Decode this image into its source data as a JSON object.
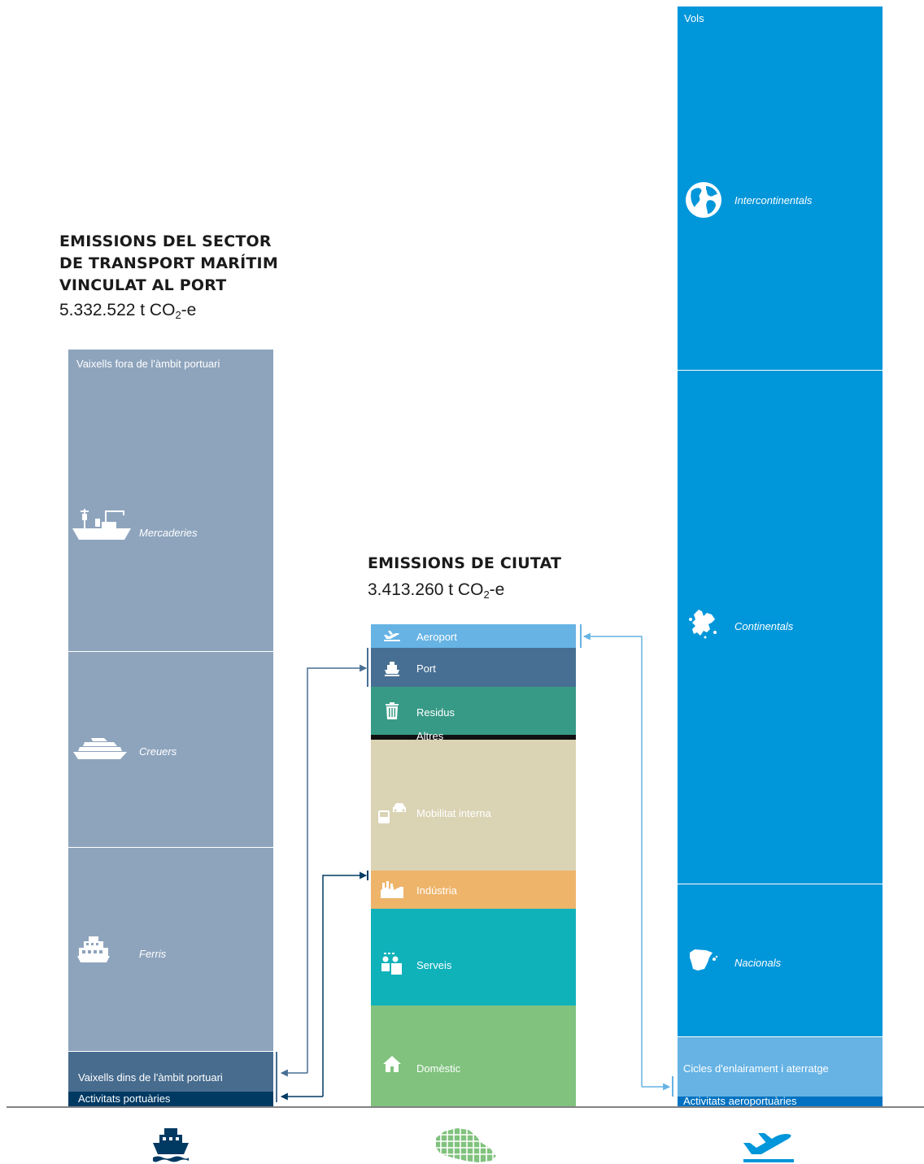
{
  "port_block": {
    "title_lines": [
      "EMISSIONS DEL SECTOR",
      "DE TRANSPORT MARÍTIM",
      "VINCULAT AL PORT"
    ],
    "total_value": "5.332.522 t CO",
    "total_sub": "2",
    "total_suffix": "-e",
    "outside_label": "Vaixells fora de l'àmbit portuari",
    "segments": {
      "mercaderies": "Mercaderies",
      "creuers": "Creuers",
      "ferris": "Ferris",
      "dins": "Vaixells dins de l'àmbit portuari",
      "activitats": "Activitats portuàries"
    }
  },
  "city_block": {
    "title": "EMISSIONS DE CIUTAT",
    "total_value": "3.413.260 t CO",
    "total_sub": "2",
    "total_suffix": "-e",
    "segments": {
      "aeroport": "Aeroport",
      "port": "Port",
      "residus": "Residus",
      "altres": "Altres",
      "mobilitat": "Mobilitat interna",
      "industria": "Indústria",
      "serveis": "Serveis",
      "domestic": "Domèstic"
    }
  },
  "airport_block": {
    "vols_label": "Vols",
    "segments": {
      "intercontinentals": "Intercontinentals",
      "continentals": "Continentals",
      "nacionals": "Nacionals",
      "cicles": "Cicles d'enlairament i aterratge",
      "activitats": "Activitats aeroportuàries"
    }
  },
  "colors": {
    "port_column": "#8ea4bd",
    "port_inside": "#476c8e",
    "port_activities": "#003a63",
    "city_aeroport": "#66b3e4",
    "city_port": "#476f93",
    "city_residus": "#379a86",
    "city_altres": "#111111",
    "city_mobilitat": "#dad3b4",
    "city_industria": "#eeb46a",
    "city_serveis": "#10b2ba",
    "city_domestic": "#80c27e",
    "air_vols": "#0096da",
    "air_cicles": "#66b3e4",
    "air_activitats": "#0072c1",
    "connector_port": "#476f93",
    "connector_air": "#66b3e4"
  },
  "bottom_icons": [
    "ship-icon",
    "barcelona-map-icon",
    "airplane-takeoff-icon"
  ]
}
